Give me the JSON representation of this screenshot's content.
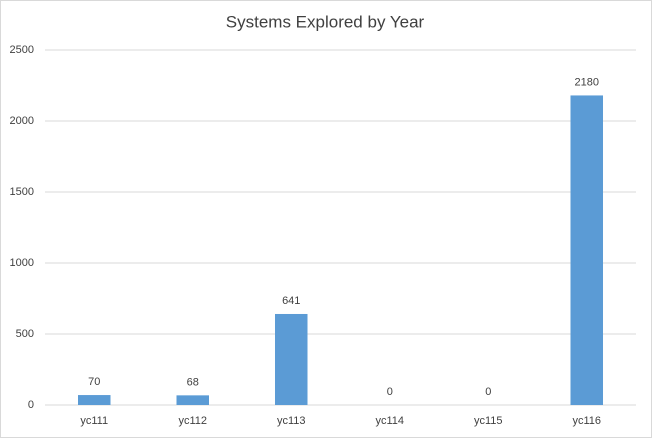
{
  "chart_data": {
    "type": "bar",
    "title": "Systems Explored by Year",
    "categories": [
      "yc111",
      "yc112",
      "yc113",
      "yc114",
      "yc115",
      "yc116"
    ],
    "values": [
      70,
      68,
      641,
      0,
      0,
      2180
    ],
    "color": "#5b9bd5",
    "ylim": [
      0,
      2500
    ],
    "yticks": [
      0,
      500,
      1000,
      1500,
      2000,
      2500
    ],
    "grid": true
  }
}
